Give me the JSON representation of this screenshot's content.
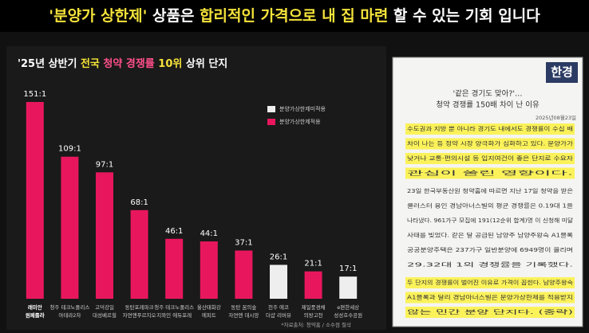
{
  "header": {
    "parts": [
      {
        "text": "'분양가 상한제'",
        "color": "#f5e33a"
      },
      {
        "text": " 상품은 ",
        "color": "#ffffff"
      },
      {
        "text": "합리적인 가격으로 내 집 마련",
        "color": "#f5e33a"
      },
      {
        "text": " 할 수 있는 기회 입니다",
        "color": "#ffffff"
      }
    ]
  },
  "chart_data": {
    "type": "bar",
    "title_parts": [
      {
        "text": "'25년 상반기 ",
        "color": "#ffffff"
      },
      {
        "text": "전국",
        "color": "#f5e33a"
      },
      {
        "text": " 청약 경쟁률 ",
        "color": "#ff4f8b"
      },
      {
        "text": "10위",
        "color": "#f5e33a"
      },
      {
        "text": " 상위 단지",
        "color": "#ffffff"
      }
    ],
    "categories": [
      "래미안 원페를라",
      "청주 테크노폴리스 아테라2차",
      "고덕강일 대성베르힐",
      "동탄포레파크 자연앤푸르지오",
      "청주 테크노폴리스 지와인 에듀포레",
      "울산태화강 에피트",
      "동탄 꿈의숲 자연앤 데시앙",
      "천주 에코 더샵 리버뷰",
      "제일풍경채 의왕고천",
      "e편한세상 성성호수공원"
    ],
    "values": [
      151,
      109,
      97,
      68,
      46,
      44,
      37,
      26,
      21,
      17
    ],
    "value_labels": [
      "151:1",
      "109:1",
      "97:1",
      "68:1",
      "46:1",
      "44:1",
      "37:1",
      "26:1",
      "21:1",
      "17:1"
    ],
    "colors": [
      "#e8175d",
      "#e8175d",
      "#e8175d",
      "#e8175d",
      "#e8175d",
      "#e8175d",
      "#e8175d",
      "#eeeeee",
      "#e8175d",
      "#eeeeee"
    ],
    "legend": [
      {
        "name": "분양가상한제미적용",
        "color": "#eeeeee"
      },
      {
        "name": "분양가상한제적용",
        "color": "#e8175d"
      }
    ],
    "source": "*자료출처: 청약홈 / 소수점 절삭"
  },
  "article": {
    "logo": "한경",
    "headline": [
      "'같은 경기도 맞아?'…",
      "청약 경쟁률 150배 차이 난 이유"
    ],
    "date": "2025년08월23일",
    "highlight": [
      "수도권과 지방 뿐 아니라 경기도 내에서도 경쟁률이 수십 배",
      "차이 나는 등 청약 시장 양극화가 심화하고 있다. 분양가가",
      "낮거나 교통·편의시설 등 입지여건이 좋은 단지로 수요자",
      "관심이 쏠린 영향이다."
    ],
    "body": [
      "23일 한국부동산원 청약홈에 따르면 지난 17일 청약을 받은",
      "쿨러스터 용인 경남아너스빌의 평균 경쟁률은 0.19대 1을",
      "나타냈다. 961가구 모집에 191(12순위 합계)명 이 신청해 미달",
      "사태를 빚었다. 같은 달 공급된 남양주 남양주왕숙 A1블록",
      "공공분양주택은 237가구 일반분양에 6949명이 몰리며",
      "29.32대 1의 경쟁률을 기록했다."
    ],
    "highlight2": [
      "두 단지의 경쟁률이 벌어진 이유로 가격이 꼽힌다. 남양주왕숙",
      "A1블록과 달리 경남아너스빌은 분양가상한제를 적용받지",
      "않는 민간 분양 단지다. (중략)"
    ]
  }
}
